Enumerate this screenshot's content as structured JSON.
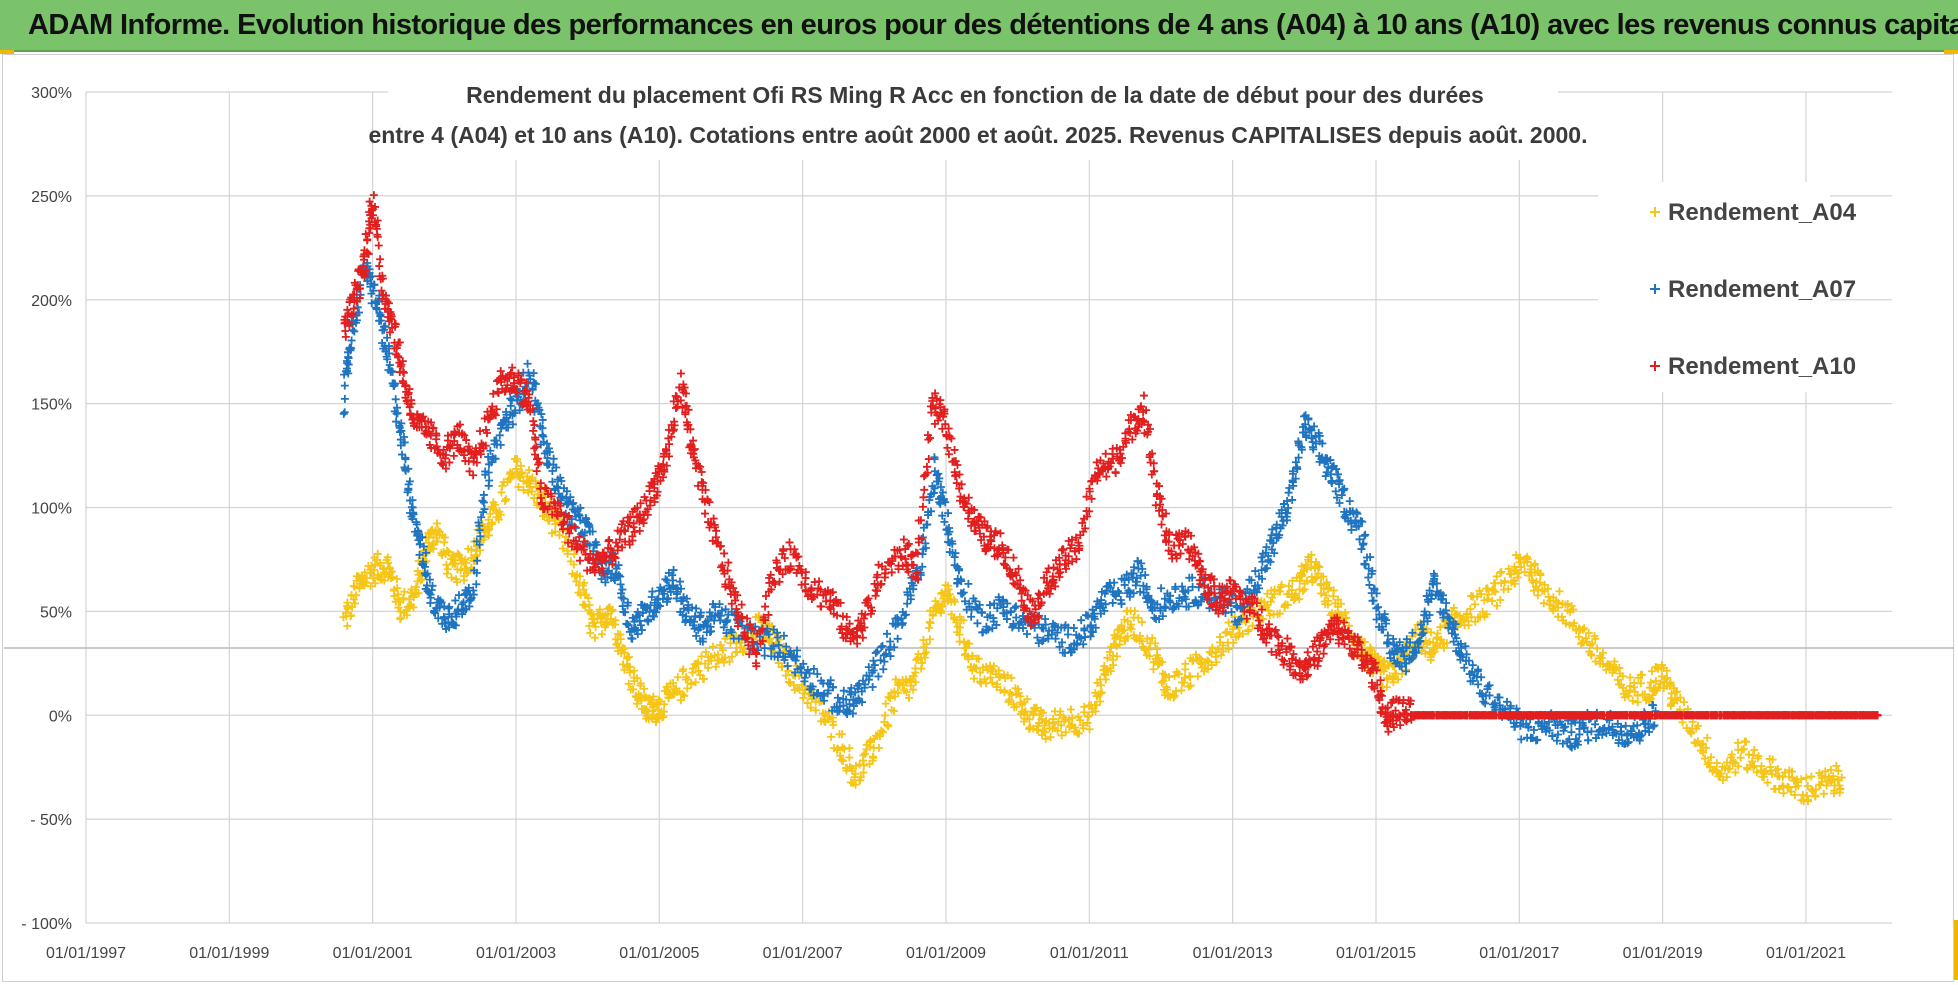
{
  "header": {
    "title": "ADAM Informe. Evolution historique des performances en euros pour des détentions de 4 ans (A04) à 10 ans (A10) avec les revenus connus capitalisés"
  },
  "chart_data": {
    "type": "scatter",
    "title_line1": "Rendement du placement Ofi RS Ming R Acc en fonction de la date de début pour des durées",
    "title_line2": "entre 4 (A04) et 10 ans (A10). Cotations entre août 2000 et août. 2025. Revenus CAPITALISES depuis août. 2000.",
    "xlabel": "",
    "ylabel": "",
    "x_range": [
      1997.0,
      2022.2
    ],
    "x_ticks": [
      "01/01/1997",
      "01/01/1999",
      "01/01/2001",
      "01/01/2003",
      "01/01/2005",
      "01/01/2007",
      "01/01/2009",
      "01/01/2011",
      "01/01/2013",
      "01/01/2015",
      "01/01/2017",
      "01/01/2019",
      "01/01/2021"
    ],
    "ylim": [
      -100,
      300
    ],
    "y_ticks": [
      "- 100%",
      "- 50%",
      "0%",
      "50%",
      "100%",
      "150%",
      "200%",
      "250%",
      "300%"
    ],
    "grid": true,
    "legend_position": "top-right",
    "marker": "+",
    "series": [
      {
        "name": "Rendement_A04",
        "color": "#f5c518",
        "points": [
          [
            2000.6,
            45
          ],
          [
            2000.8,
            62
          ],
          [
            2001.0,
            70
          ],
          [
            2001.2,
            72
          ],
          [
            2001.4,
            52
          ],
          [
            2001.6,
            58
          ],
          [
            2001.75,
            82
          ],
          [
            2001.9,
            88
          ],
          [
            2002.1,
            70
          ],
          [
            2002.3,
            72
          ],
          [
            2002.5,
            85
          ],
          [
            2002.7,
            96
          ],
          [
            2003.0,
            118
          ],
          [
            2003.2,
            112
          ],
          [
            2003.4,
            100
          ],
          [
            2003.6,
            90
          ],
          [
            2003.9,
            62
          ],
          [
            2004.1,
            40
          ],
          [
            2004.3,
            52
          ],
          [
            2004.5,
            30
          ],
          [
            2004.7,
            12
          ],
          [
            2004.85,
            2
          ],
          [
            2005.0,
            4
          ],
          [
            2005.2,
            10
          ],
          [
            2005.5,
            22
          ],
          [
            2005.8,
            28
          ],
          [
            2006.1,
            36
          ],
          [
            2006.4,
            42
          ],
          [
            2006.6,
            35
          ],
          [
            2006.9,
            18
          ],
          [
            2007.2,
            5
          ],
          [
            2007.5,
            -12
          ],
          [
            2007.75,
            -30
          ],
          [
            2008.0,
            -15
          ],
          [
            2008.3,
            10
          ],
          [
            2008.55,
            15
          ],
          [
            2008.8,
            45
          ],
          [
            2009.0,
            60
          ],
          [
            2009.2,
            42
          ],
          [
            2009.4,
            22
          ],
          [
            2009.7,
            18
          ],
          [
            2010.0,
            8
          ],
          [
            2010.2,
            -2
          ],
          [
            2010.4,
            -6
          ],
          [
            2010.7,
            -2
          ],
          [
            2011.0,
            -2
          ],
          [
            2011.2,
            18
          ],
          [
            2011.4,
            38
          ],
          [
            2011.6,
            46
          ],
          [
            2011.9,
            30
          ],
          [
            2012.1,
            12
          ],
          [
            2012.4,
            20
          ],
          [
            2012.7,
            30
          ],
          [
            2013.0,
            40
          ],
          [
            2013.3,
            50
          ],
          [
            2013.6,
            55
          ],
          [
            2013.9,
            60
          ],
          [
            2014.1,
            72
          ],
          [
            2014.3,
            58
          ],
          [
            2014.5,
            48
          ],
          [
            2014.8,
            32
          ],
          [
            2015.0,
            22
          ],
          [
            2015.2,
            18
          ],
          [
            2015.4,
            28
          ],
          [
            2015.6,
            38
          ],
          [
            2015.8,
            32
          ],
          [
            2016.0,
            42
          ],
          [
            2016.3,
            50
          ],
          [
            2016.6,
            56
          ],
          [
            2016.9,
            68
          ],
          [
            2017.1,
            74
          ],
          [
            2017.3,
            62
          ],
          [
            2017.6,
            52
          ],
          [
            2017.9,
            38
          ],
          [
            2018.2,
            25
          ],
          [
            2018.5,
            12
          ],
          [
            2018.8,
            14
          ],
          [
            2019.0,
            20
          ],
          [
            2019.2,
            5
          ],
          [
            2019.5,
            -10
          ],
          [
            2019.8,
            -28
          ],
          [
            2020.1,
            -18
          ],
          [
            2020.4,
            -25
          ],
          [
            2020.7,
            -32
          ],
          [
            2021.0,
            -36
          ],
          [
            2021.3,
            -33
          ],
          [
            2021.5,
            -30
          ]
        ]
      },
      {
        "name": "Rendement_A07",
        "color": "#1f74c0",
        "points": [
          [
            2000.6,
            150
          ],
          [
            2000.7,
            185
          ],
          [
            2000.9,
            215
          ],
          [
            2001.05,
            200
          ],
          [
            2001.2,
            175
          ],
          [
            2001.35,
            145
          ],
          [
            2001.5,
            110
          ],
          [
            2001.65,
            85
          ],
          [
            2001.8,
            58
          ],
          [
            2002.0,
            48
          ],
          [
            2002.2,
            50
          ],
          [
            2002.4,
            62
          ],
          [
            2002.6,
            115
          ],
          [
            2002.8,
            138
          ],
          [
            2003.0,
            150
          ],
          [
            2003.2,
            165
          ],
          [
            2003.4,
            130
          ],
          [
            2003.6,
            110
          ],
          [
            2003.8,
            96
          ],
          [
            2004.0,
            88
          ],
          [
            2004.2,
            70
          ],
          [
            2004.4,
            72
          ],
          [
            2004.6,
            42
          ],
          [
            2004.8,
            48
          ],
          [
            2005.0,
            58
          ],
          [
            2005.2,
            65
          ],
          [
            2005.4,
            48
          ],
          [
            2005.6,
            42
          ],
          [
            2005.8,
            48
          ],
          [
            2006.1,
            42
          ],
          [
            2006.4,
            36
          ],
          [
            2006.7,
            34
          ],
          [
            2007.0,
            22
          ],
          [
            2007.3,
            12
          ],
          [
            2007.6,
            4
          ],
          [
            2007.8,
            10
          ],
          [
            2008.1,
            28
          ],
          [
            2008.4,
            48
          ],
          [
            2008.65,
            72
          ],
          [
            2008.85,
            118
          ],
          [
            2009.0,
            95
          ],
          [
            2009.2,
            62
          ],
          [
            2009.5,
            46
          ],
          [
            2009.8,
            52
          ],
          [
            2010.1,
            44
          ],
          [
            2010.4,
            40
          ],
          [
            2010.7,
            36
          ],
          [
            2011.0,
            42
          ],
          [
            2011.2,
            55
          ],
          [
            2011.5,
            60
          ],
          [
            2011.7,
            68
          ],
          [
            2011.9,
            52
          ],
          [
            2012.2,
            58
          ],
          [
            2012.5,
            60
          ],
          [
            2012.8,
            56
          ],
          [
            2013.1,
            50
          ],
          [
            2013.4,
            70
          ],
          [
            2013.6,
            86
          ],
          [
            2013.8,
            105
          ],
          [
            2014.0,
            140
          ],
          [
            2014.2,
            128
          ],
          [
            2014.4,
            115
          ],
          [
            2014.6,
            100
          ],
          [
            2014.8,
            88
          ],
          [
            2015.0,
            55
          ],
          [
            2015.2,
            32
          ],
          [
            2015.4,
            28
          ],
          [
            2015.6,
            38
          ],
          [
            2015.8,
            62
          ],
          [
            2016.0,
            48
          ],
          [
            2016.2,
            30
          ],
          [
            2016.5,
            12
          ],
          [
            2016.8,
            2
          ],
          [
            2017.1,
            -8
          ],
          [
            2017.4,
            -4
          ],
          [
            2017.7,
            -10
          ],
          [
            2017.9,
            -6
          ],
          [
            2018.2,
            -4
          ],
          [
            2018.5,
            -8
          ],
          [
            2018.7,
            -6
          ],
          [
            2018.9,
            2
          ]
        ]
      },
      {
        "name": "Rendement_A10",
        "color": "#e21f1f",
        "points": [
          [
            2000.6,
            185
          ],
          [
            2000.75,
            200
          ],
          [
            2000.9,
            220
          ],
          [
            2001.0,
            250
          ],
          [
            2001.15,
            205
          ],
          [
            2001.3,
            185
          ],
          [
            2001.45,
            160
          ],
          [
            2001.6,
            140
          ],
          [
            2001.8,
            135
          ],
          [
            2002.0,
            125
          ],
          [
            2002.2,
            135
          ],
          [
            2002.4,
            118
          ],
          [
            2002.6,
            140
          ],
          [
            2002.8,
            160
          ],
          [
            2003.0,
            162
          ],
          [
            2003.2,
            150
          ],
          [
            2003.35,
            105
          ],
          [
            2003.6,
            98
          ],
          [
            2003.85,
            82
          ],
          [
            2004.1,
            72
          ],
          [
            2004.3,
            78
          ],
          [
            2004.55,
            88
          ],
          [
            2004.75,
            96
          ],
          [
            2004.95,
            112
          ],
          [
            2005.1,
            125
          ],
          [
            2005.3,
            160
          ],
          [
            2005.45,
            130
          ],
          [
            2005.65,
            100
          ],
          [
            2005.9,
            72
          ],
          [
            2006.1,
            50
          ],
          [
            2006.35,
            30
          ],
          [
            2006.6,
            68
          ],
          [
            2006.85,
            78
          ],
          [
            2007.1,
            62
          ],
          [
            2007.4,
            55
          ],
          [
            2007.65,
            38
          ],
          [
            2007.85,
            45
          ],
          [
            2008.1,
            68
          ],
          [
            2008.4,
            78
          ],
          [
            2008.6,
            72
          ],
          [
            2008.8,
            150
          ],
          [
            2009.0,
            140
          ],
          [
            2009.2,
            110
          ],
          [
            2009.4,
            92
          ],
          [
            2009.6,
            84
          ],
          [
            2009.8,
            80
          ],
          [
            2010.0,
            65
          ],
          [
            2010.2,
            48
          ],
          [
            2010.4,
            62
          ],
          [
            2010.6,
            72
          ],
          [
            2010.85,
            82
          ],
          [
            2011.1,
            118
          ],
          [
            2011.3,
            120
          ],
          [
            2011.55,
            135
          ],
          [
            2011.75,
            150
          ],
          [
            2011.95,
            105
          ],
          [
            2012.15,
            80
          ],
          [
            2012.4,
            82
          ],
          [
            2012.6,
            65
          ],
          [
            2012.8,
            55
          ],
          [
            2013.0,
            60
          ],
          [
            2013.3,
            50
          ],
          [
            2013.55,
            38
          ],
          [
            2013.8,
            28
          ],
          [
            2014.0,
            22
          ],
          [
            2014.2,
            32
          ],
          [
            2014.4,
            42
          ],
          [
            2014.6,
            38
          ],
          [
            2014.8,
            28
          ],
          [
            2015.0,
            18
          ],
          [
            2015.15,
            -2
          ],
          [
            2015.3,
            2
          ],
          [
            2015.5,
            0
          ],
          [
            2016.0,
            0
          ],
          [
            2016.5,
            0
          ],
          [
            2017.0,
            0
          ],
          [
            2017.5,
            0
          ],
          [
            2018.0,
            0
          ],
          [
            2018.5,
            0
          ],
          [
            2019.0,
            0
          ],
          [
            2019.5,
            0
          ],
          [
            2020.0,
            0
          ],
          [
            2020.5,
            0
          ],
          [
            2021.0,
            0
          ],
          [
            2021.5,
            0
          ],
          [
            2022.0,
            0
          ]
        ]
      }
    ]
  }
}
